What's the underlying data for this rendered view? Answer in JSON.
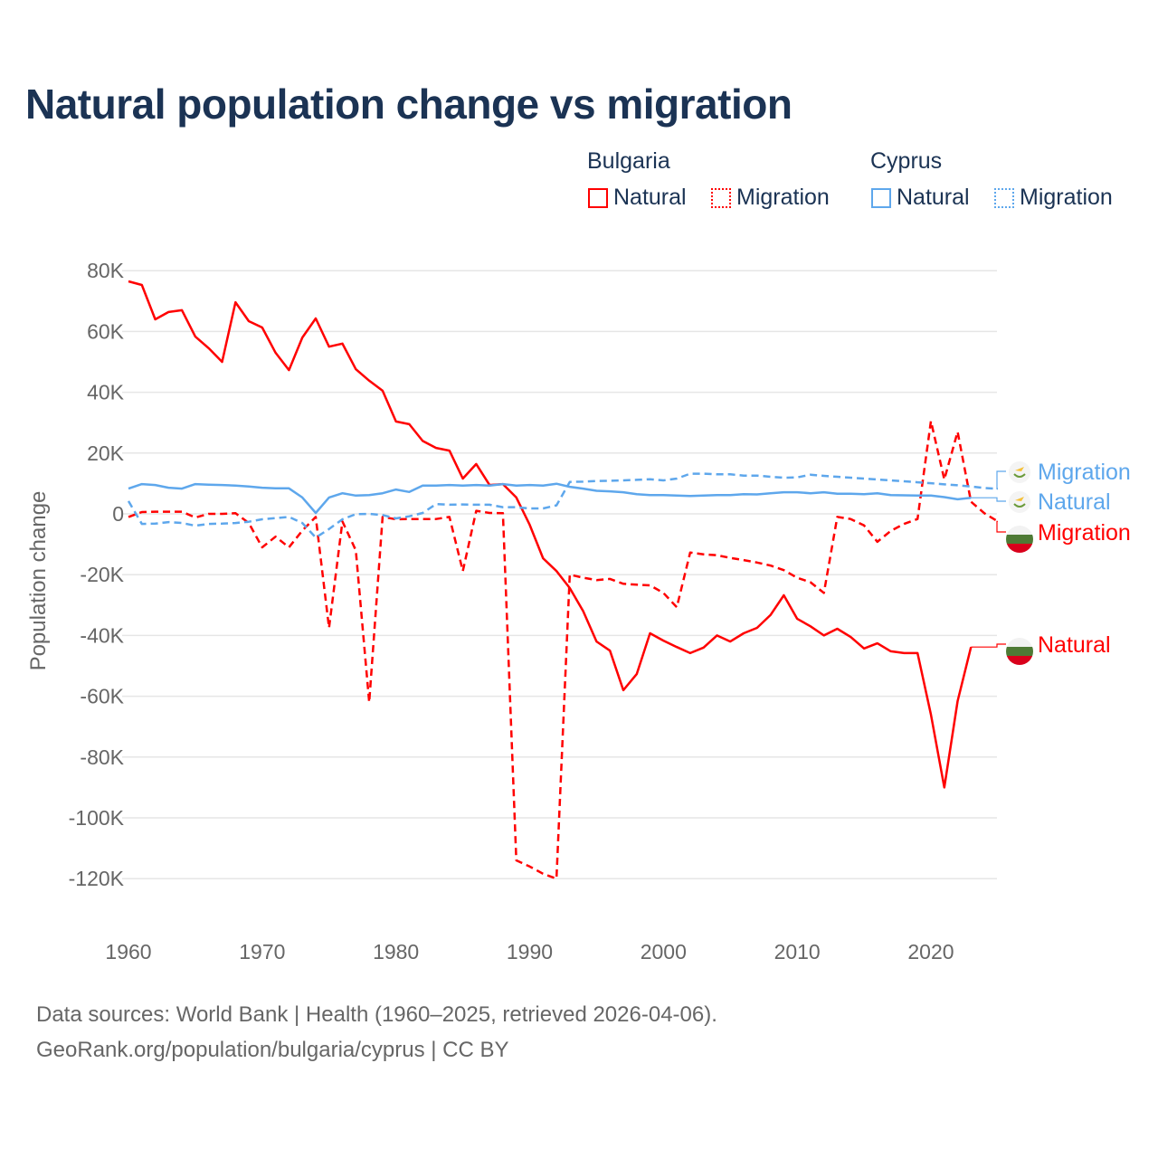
{
  "chart_data": {
    "type": "line",
    "title": "Natural population change vs migration",
    "xlabel": "",
    "ylabel": "Population change",
    "xlim": [
      1960,
      2025
    ],
    "ylim": [
      -130000,
      80000
    ],
    "x_ticks": [
      1960,
      1970,
      1980,
      1990,
      2000,
      2010,
      2020
    ],
    "x_tick_labels": [
      "1960",
      "1970",
      "1980",
      "1990",
      "2000",
      "2010",
      "2020"
    ],
    "y_ticks": [
      80000,
      60000,
      40000,
      20000,
      0,
      -20000,
      -40000,
      -60000,
      -80000,
      -100000,
      -120000
    ],
    "y_tick_labels": [
      "80K",
      "60K",
      "40K",
      "20K",
      "0",
      "-20K",
      "-40K",
      "-60K",
      "-80K",
      "-100K",
      "-120K"
    ],
    "grid": true,
    "legend": {
      "placement": "top-right",
      "groups": [
        {
          "name": "Bulgaria",
          "items": [
            "Natural",
            "Migration"
          ]
        },
        {
          "name": "Cyprus",
          "items": [
            "Natural",
            "Migration"
          ]
        }
      ]
    },
    "series": [
      {
        "name": "Bulgaria Natural",
        "country": "Bulgaria",
        "kind": "Natural",
        "label": "Natural",
        "color": "#ff0000",
        "dash": false,
        "start": 1960,
        "values": [
          76500,
          75300,
          64000,
          66400,
          67000,
          58300,
          54500,
          50000,
          69600,
          63400,
          61300,
          53000,
          47300,
          58000,
          64300,
          55000,
          56000,
          47600,
          43800,
          40500,
          30400,
          29500,
          24000,
          21700,
          20800,
          11600,
          16400,
          9500,
          9800,
          5400,
          -3600,
          -14600,
          -18800,
          -24400,
          -32000,
          -42000,
          -45000,
          -58000,
          -52700,
          -39300,
          -41700,
          -43800,
          -45800,
          -44000,
          -40000,
          -42000,
          -39300,
          -37500,
          -33300,
          -26800,
          -34500,
          -37000,
          -40000,
          -37800,
          -40500,
          -44300,
          -42600,
          -45200,
          -45800,
          -45800,
          -66000,
          -90000,
          -61600,
          -43800
        ]
      },
      {
        "name": "Bulgaria Migration",
        "country": "Bulgaria",
        "kind": "Migration",
        "label": "Migration",
        "color": "#ff0000",
        "dash": true,
        "start": 1960,
        "values": [
          -1000,
          600,
          700,
          700,
          700,
          -1200,
          0,
          0,
          200,
          -3000,
          -11000,
          -7500,
          -11000,
          -5500,
          -1000,
          -37500,
          -2500,
          -12000,
          -62000,
          -1000,
          -1800,
          -1700,
          -1700,
          -1700,
          -1000,
          -18800,
          1000,
          300,
          200,
          -114000,
          -116000,
          -118400,
          -120000,
          -20000,
          -21000,
          -21800,
          -21400,
          -23000,
          -23300,
          -23500,
          -26000,
          -30700,
          -12700,
          -13300,
          -13600,
          -14500,
          -15200,
          -16000,
          -17000,
          -18500,
          -21000,
          -22500,
          -26000,
          -1000,
          -1700,
          -3800,
          -9200,
          -5600,
          -3300,
          -1700,
          30500,
          11300,
          27000,
          4000,
          200,
          -2500
        ]
      },
      {
        "name": "Cyprus Natural",
        "country": "Cyprus",
        "kind": "Natural",
        "label": "Natural",
        "color": "#5ea7ec",
        "dash": false,
        "start": 1960,
        "values": [
          8300,
          9800,
          9500,
          8600,
          8300,
          9800,
          9600,
          9500,
          9300,
          9000,
          8600,
          8400,
          8400,
          5400,
          300,
          5400,
          6800,
          6000,
          6200,
          6800,
          8000,
          7200,
          9300,
          9300,
          9500,
          9300,
          9500,
          9300,
          9800,
          9300,
          9500,
          9300,
          9900,
          8900,
          8300,
          7600,
          7400,
          7100,
          6500,
          6200,
          6200,
          6000,
          5900,
          6000,
          6200,
          6200,
          6500,
          6400,
          6800,
          7100,
          7100,
          6800,
          7100,
          6600,
          6600,
          6500,
          6800,
          6200,
          6100,
          6000,
          6000,
          5500,
          4800,
          5300
        ]
      },
      {
        "name": "Cyprus Migration",
        "country": "Cyprus",
        "kind": "Migration",
        "label": "Migration",
        "color": "#5ea7ec",
        "dash": true,
        "start": 1960,
        "values": [
          4200,
          -3300,
          -3200,
          -2700,
          -3000,
          -3900,
          -3300,
          -3200,
          -3000,
          -2600,
          -1800,
          -1400,
          -1000,
          -3000,
          -7800,
          -5000,
          -1800,
          -100,
          0,
          -400,
          -1500,
          -800,
          300,
          3200,
          3000,
          3100,
          3000,
          3000,
          2200,
          2200,
          1800,
          1800,
          2800,
          10500,
          10600,
          10800,
          10900,
          11000,
          11200,
          11400,
          11000,
          11600,
          13200,
          13200,
          13000,
          13000,
          12600,
          12600,
          12200,
          11900,
          12000,
          12900,
          12500,
          12200,
          11900,
          11600,
          11300,
          11000,
          10700,
          10400,
          10100,
          9700,
          9400,
          9000,
          8500,
          8200
        ]
      }
    ]
  },
  "footer": {
    "line1": "Data sources: World Bank | Health (1960–2025, retrieved 2026-04-06).",
    "line2": "GeoRank.org/population/bulgaria/cyprus | CC BY"
  },
  "icons": {
    "bulgaria": "bulgaria-flag-icon",
    "cyprus": "cyprus-flag-icon"
  }
}
